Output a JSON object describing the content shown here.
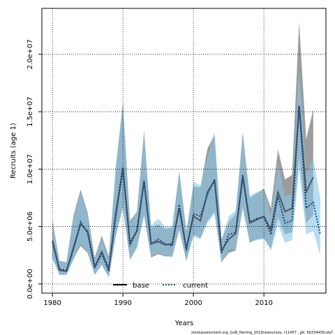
{
  "chart_data": {
    "type": "line",
    "xlabel": "Years",
    "ylabel": "Recruits (age 1)",
    "xlim": [
      1978.5,
      2018.8
    ],
    "ylim": [
      -800000,
      24000000
    ],
    "x_ticks": [
      1980,
      1990,
      2000,
      2010
    ],
    "x_tick_labels": [
      "1980",
      "1990",
      "2000",
      "2010"
    ],
    "y_ticks": [
      0,
      5000000,
      10000000,
      15000000,
      20000000
    ],
    "y_tick_labels": [
      "0.0e+00",
      "5.0e+06",
      "1.0e+07",
      "1.5e+07",
      "2.0e+07"
    ],
    "grid": true,
    "legend_position": "bottom-center",
    "legend": [
      {
        "label": "base",
        "style": "solid",
        "color": "#000000"
      },
      {
        "label": "current",
        "style": "dotted",
        "color": "#0a4a8a"
      }
    ],
    "x": [
      1980,
      1981,
      1982,
      1983,
      1984,
      1985,
      1986,
      1987,
      1988,
      1989,
      1990,
      1991,
      1992,
      1993,
      1994,
      1995,
      1996,
      1997,
      1998,
      1999,
      2000,
      2001,
      2002,
      2003,
      2004,
      2005,
      2006,
      2007,
      2008,
      2009,
      2010,
      2011,
      2012,
      2013,
      2014,
      2015,
      2016,
      2017,
      2018
    ],
    "series": [
      {
        "name": "base",
        "color": "#555555",
        "band_color": "#8c8c8c",
        "values": [
          3800000,
          1200000,
          1100000,
          3200000,
          5200000,
          4600000,
          1500000,
          2800000,
          1300000,
          6000000,
          10000000,
          3600000,
          4600000,
          8900000,
          3500000,
          3700000,
          3400000,
          3500000,
          6600000,
          3100000,
          5900000,
          5500000,
          8000000,
          9000000,
          2900000,
          3900000,
          4400000,
          9300000,
          5300000,
          5600000,
          5900000,
          4700000,
          8000000,
          6300000,
          6600000,
          15500000,
          8000000,
          9300000,
          null
        ],
        "lower": [
          2300000,
          800000,
          800000,
          2200000,
          3300000,
          2700000,
          800000,
          1700000,
          600000,
          4200000,
          6800000,
          2100000,
          3200000,
          6000000,
          2300000,
          2600000,
          2400000,
          2400000,
          4700000,
          2000000,
          4300000,
          4000000,
          5500000,
          6300000,
          1900000,
          2700000,
          2900000,
          6700000,
          3600000,
          3900000,
          4000000,
          3100000,
          5800000,
          4300000,
          4500000,
          11000000,
          5300000,
          6000000,
          null
        ],
        "upper": [
          5600000,
          2000000,
          1900000,
          6000000,
          8200000,
          6200000,
          2300000,
          4200000,
          2400000,
          10000000,
          15800000,
          5500000,
          6300000,
          13300000,
          4900000,
          5200000,
          4800000,
          4900000,
          9800000,
          4600000,
          8500000,
          8400000,
          11800000,
          13000000,
          3900000,
          5400000,
          6100000,
          13200000,
          7500000,
          7900000,
          8300000,
          6600000,
          11700000,
          9100000,
          9500000,
          22800000,
          12600000,
          15200000,
          null
        ]
      },
      {
        "name": "current",
        "color": "#0a4a8a",
        "band_color": "#87c6ea",
        "values": [
          3600000,
          1300000,
          1200000,
          3000000,
          5400000,
          4400000,
          1400000,
          2600000,
          1100000,
          6300000,
          10200000,
          3300000,
          4700000,
          9000000,
          3500000,
          3900000,
          3500000,
          3300000,
          6900000,
          2900000,
          6100000,
          5900000,
          7800000,
          9100000,
          2700000,
          4300000,
          4500000,
          9500000,
          5400000,
          5700000,
          5800000,
          4300000,
          7600000,
          5300000,
          5500000,
          15500000,
          6600000,
          7100000,
          4300000
        ],
        "lower": [
          2200000,
          800000,
          800000,
          2100000,
          3500000,
          2800000,
          800000,
          1600000,
          600000,
          4300000,
          6500000,
          2100000,
          3100000,
          5900000,
          2400000,
          2700000,
          2500000,
          2300000,
          4800000,
          2000000,
          4100000,
          3900000,
          5300000,
          6100000,
          1800000,
          3000000,
          3000000,
          6500000,
          3700000,
          3800000,
          3900000,
          2900000,
          5100000,
          3600000,
          3800000,
          10000000,
          4300000,
          4600000,
          2500000
        ],
        "upper": [
          5500000,
          2000000,
          1900000,
          5800000,
          8000000,
          6000000,
          2200000,
          4000000,
          2100000,
          10500000,
          15600000,
          5200000,
          6400000,
          13100000,
          5100000,
          5700000,
          5000000,
          5000000,
          9700000,
          4400000,
          8900000,
          8600000,
          11000000,
          13200000,
          3800000,
          5900000,
          6400000,
          12800000,
          7700000,
          8000000,
          8200000,
          6000000,
          10500000,
          7600000,
          7900000,
          18800000,
          9500000,
          11000000,
          7500000
        ]
      }
    ]
  },
  "footer": "stockassessment.org, GoB_Herring_2019newsurvey, r11457 , git: 5b334405cda7"
}
